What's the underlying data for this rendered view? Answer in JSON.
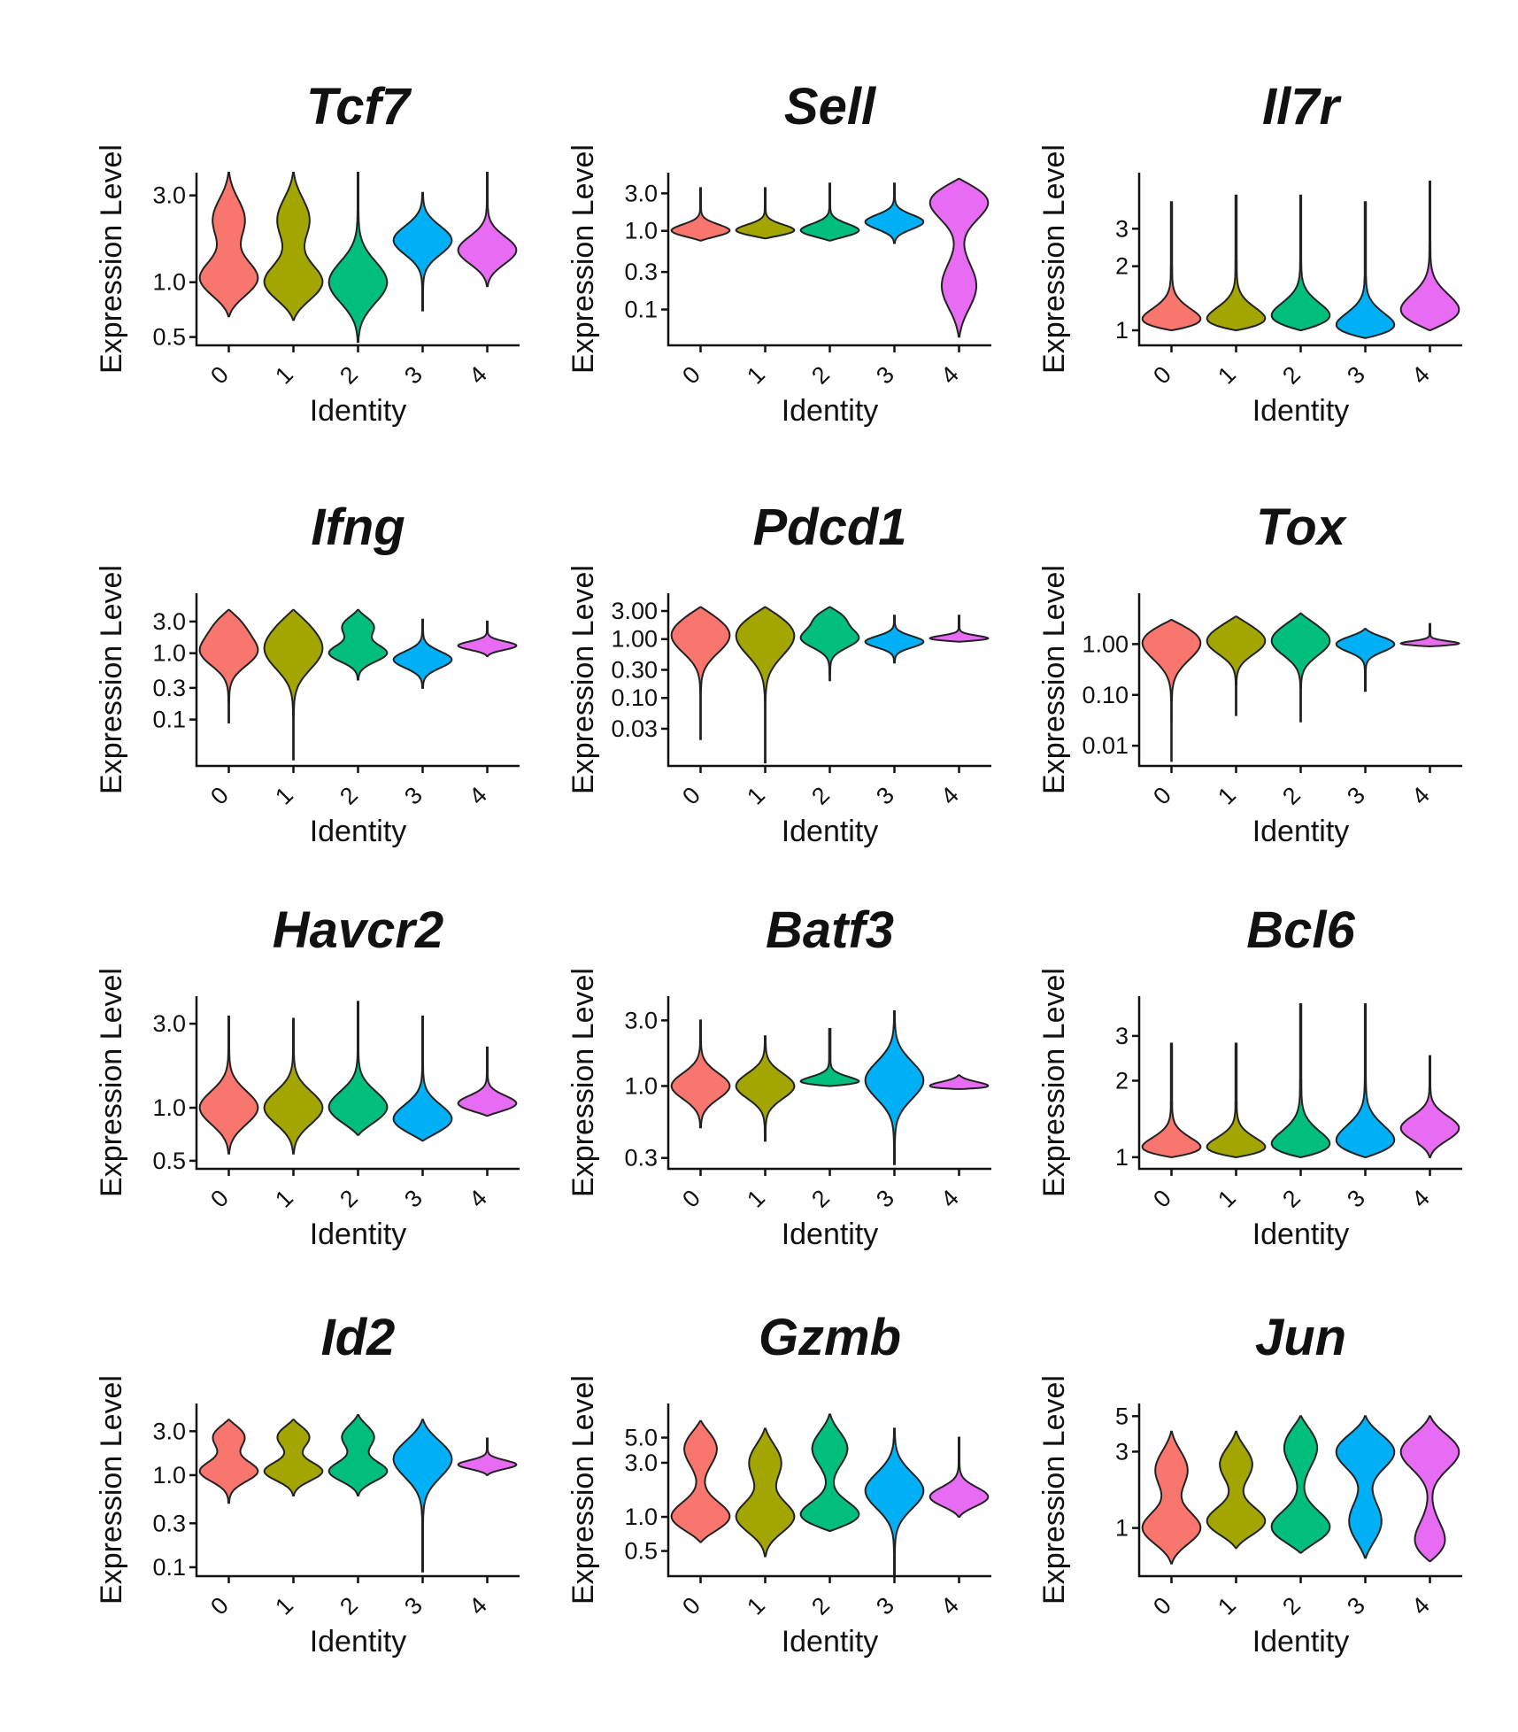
{
  "chart_data": [
    {
      "type": "violin",
      "title": "Tcf7",
      "xlabel": "Identity",
      "ylabel": "Expression Level",
      "categories": [
        "0",
        "1",
        "2",
        "3",
        "4"
      ],
      "yticks": [
        {
          "v": 0.5,
          "label": "0.5"
        },
        {
          "v": 1.0,
          "label": "1.0"
        },
        {
          "v": 3.0,
          "label": "3.0"
        }
      ],
      "ylim": [
        0.45,
        4.0
      ],
      "violins": [
        {
          "lo": 0.65,
          "hi": 4.0,
          "peak": 1.05,
          "top_bulge": 2.2
        },
        {
          "lo": 0.62,
          "hi": 4.0,
          "peak": 1.0,
          "top_bulge": 2.2
        },
        {
          "lo": 0.47,
          "hi": 4.0,
          "peak": 1.0,
          "top_bulge": null
        },
        {
          "lo": 0.7,
          "hi": 3.1,
          "peak": 1.7,
          "top_bulge": null
        },
        {
          "lo": 0.95,
          "hi": 4.0,
          "peak": 1.5,
          "top_bulge": null
        }
      ]
    },
    {
      "type": "violin",
      "title": "Sell",
      "xlabel": "Identity",
      "ylabel": "Expression Level",
      "categories": [
        "0",
        "1",
        "2",
        "3",
        "4"
      ],
      "yticks": [
        {
          "v": 0.1,
          "label": "0.1"
        },
        {
          "v": 0.3,
          "label": "0.3"
        },
        {
          "v": 1.0,
          "label": "1.0"
        },
        {
          "v": 3.0,
          "label": "3.0"
        }
      ],
      "ylim": [
        0.035,
        5.5
      ],
      "violins": [
        {
          "lo": 0.75,
          "hi": 3.5,
          "peak": 1.0,
          "top_bulge": null
        },
        {
          "lo": 0.8,
          "hi": 3.5,
          "peak": 1.0,
          "top_bulge": null
        },
        {
          "lo": 0.75,
          "hi": 4.0,
          "peak": 1.0,
          "top_bulge": null
        },
        {
          "lo": 0.7,
          "hi": 4.0,
          "peak": 1.3,
          "top_bulge": null
        },
        {
          "lo": 0.045,
          "hi": 4.6,
          "peak": 2.5,
          "top_bulge": 0.2
        }
      ]
    },
    {
      "type": "violin",
      "title": "Il7r",
      "xlabel": "Identity",
      "ylabel": "Expression Level",
      "categories": [
        "0",
        "1",
        "2",
        "3",
        "4"
      ],
      "yticks": [
        {
          "v": 1,
          "label": "1"
        },
        {
          "v": 2,
          "label": "2"
        },
        {
          "v": 3,
          "label": "3"
        }
      ],
      "ylim": [
        0.85,
        5.5
      ],
      "violins": [
        {
          "lo": 1.0,
          "hi": 4.0,
          "peak": 1.02,
          "top_bulge": null
        },
        {
          "lo": 1.0,
          "hi": 4.3,
          "peak": 1.02,
          "top_bulge": null
        },
        {
          "lo": 1.0,
          "hi": 4.3,
          "peak": 1.1,
          "top_bulge": null
        },
        {
          "lo": 0.92,
          "hi": 4.0,
          "peak": 0.97,
          "top_bulge": null
        },
        {
          "lo": 1.0,
          "hi": 5.0,
          "peak": 1.2,
          "top_bulge": null
        }
      ]
    },
    {
      "type": "violin",
      "title": "Ifng",
      "xlabel": "Identity",
      "ylabel": "Expression Level",
      "categories": [
        "0",
        "1",
        "2",
        "3",
        "4"
      ],
      "yticks": [
        {
          "v": 0.1,
          "label": "0.1"
        },
        {
          "v": 0.3,
          "label": "0.3"
        },
        {
          "v": 1.0,
          "label": "1.0"
        },
        {
          "v": 3.0,
          "label": "3.0"
        }
      ],
      "ylim": [
        0.02,
        8.0
      ],
      "violins": [
        {
          "lo": 0.09,
          "hi": 4.5,
          "peak": 1.0,
          "top_bulge": 2.5
        },
        {
          "lo": 0.025,
          "hi": 4.5,
          "peak": 1.0,
          "top_bulge": 2.5
        },
        {
          "lo": 0.4,
          "hi": 4.5,
          "peak": 1.0,
          "top_bulge": 2.5
        },
        {
          "lo": 0.3,
          "hi": 3.2,
          "peak": 0.8,
          "top_bulge": null
        },
        {
          "lo": 0.9,
          "hi": 3.0,
          "peak": 1.3,
          "top_bulge": null
        }
      ]
    },
    {
      "type": "violin",
      "title": "Pdcd1",
      "xlabel": "Identity",
      "ylabel": "Expression Level",
      "categories": [
        "0",
        "1",
        "2",
        "3",
        "4"
      ],
      "yticks": [
        {
          "v": 0.03,
          "label": "0.03"
        },
        {
          "v": 0.1,
          "label": "0.10"
        },
        {
          "v": 0.3,
          "label": "0.30"
        },
        {
          "v": 1.0,
          "label": "1.00"
        },
        {
          "v": 3.0,
          "label": "3.00"
        }
      ],
      "ylim": [
        0.007,
        6.0
      ],
      "violins": [
        {
          "lo": 0.02,
          "hi": 3.5,
          "peak": 1.0,
          "top_bulge": 2.2
        },
        {
          "lo": 0.008,
          "hi": 3.5,
          "peak": 1.0,
          "top_bulge": 2.2
        },
        {
          "lo": 0.2,
          "hi": 3.5,
          "peak": 1.0,
          "top_bulge": 2.2
        },
        {
          "lo": 0.4,
          "hi": 2.5,
          "peak": 0.9,
          "top_bulge": null
        },
        {
          "lo": 0.9,
          "hi": 2.5,
          "peak": 1.0,
          "top_bulge": null
        }
      ]
    },
    {
      "type": "violin",
      "title": "Tox",
      "xlabel": "Identity",
      "ylabel": "Expression Level",
      "categories": [
        "0",
        "1",
        "2",
        "3",
        "4"
      ],
      "yticks": [
        {
          "v": 0.01,
          "label": "0.01"
        },
        {
          "v": 0.1,
          "label": "0.10"
        },
        {
          "v": 1.0,
          "label": "1.00"
        }
      ],
      "ylim": [
        0.004,
        10.0
      ],
      "violins": [
        {
          "lo": 0.005,
          "hi": 3.0,
          "peak": 1.0,
          "top_bulge": 1.8
        },
        {
          "lo": 0.04,
          "hi": 3.5,
          "peak": 1.0,
          "top_bulge": 2.0
        },
        {
          "lo": 0.03,
          "hi": 4.0,
          "peak": 1.0,
          "top_bulge": 2.0
        },
        {
          "lo": 0.12,
          "hi": 2.0,
          "peak": 1.0,
          "top_bulge": null
        },
        {
          "lo": 0.9,
          "hi": 2.5,
          "peak": 1.0,
          "top_bulge": null
        }
      ]
    },
    {
      "type": "violin",
      "title": "Havcr2",
      "xlabel": "Identity",
      "ylabel": "Expression Level",
      "categories": [
        "0",
        "1",
        "2",
        "3",
        "4"
      ],
      "yticks": [
        {
          "v": 0.5,
          "label": "0.5"
        },
        {
          "v": 1.0,
          "label": "1.0"
        },
        {
          "v": 3.0,
          "label": "3.0"
        }
      ],
      "ylim": [
        0.45,
        4.3
      ],
      "violins": [
        {
          "lo": 0.55,
          "hi": 3.3,
          "peak": 1.0,
          "top_bulge": null
        },
        {
          "lo": 0.55,
          "hi": 3.2,
          "peak": 1.0,
          "top_bulge": null
        },
        {
          "lo": 0.7,
          "hi": 4.0,
          "peak": 1.0,
          "top_bulge": null
        },
        {
          "lo": 0.65,
          "hi": 3.3,
          "peak": 0.85,
          "top_bulge": null
        },
        {
          "lo": 0.9,
          "hi": 2.2,
          "peak": 1.05,
          "top_bulge": null
        }
      ]
    },
    {
      "type": "violin",
      "title": "Batf3",
      "xlabel": "Identity",
      "ylabel": "Expression Level",
      "categories": [
        "0",
        "1",
        "2",
        "3",
        "4"
      ],
      "yticks": [
        {
          "v": 0.3,
          "label": "0.3"
        },
        {
          "v": 1.0,
          "label": "1.0"
        },
        {
          "v": 3.0,
          "label": "3.0"
        }
      ],
      "ylim": [
        0.25,
        4.5
      ],
      "violins": [
        {
          "lo": 0.5,
          "hi": 3.0,
          "peak": 1.0,
          "top_bulge": null
        },
        {
          "lo": 0.4,
          "hi": 2.3,
          "peak": 1.0,
          "top_bulge": null
        },
        {
          "lo": 1.0,
          "hi": 2.6,
          "peak": 1.0,
          "top_bulge": null
        },
        {
          "lo": 0.27,
          "hi": 3.5,
          "peak": 1.1,
          "top_bulge": null
        },
        {
          "lo": 0.95,
          "hi": 1.2,
          "peak": 1.0,
          "top_bulge": null
        }
      ]
    },
    {
      "type": "violin",
      "title": "Bcl6",
      "xlabel": "Identity",
      "ylabel": "Expression Level",
      "categories": [
        "0",
        "1",
        "2",
        "3",
        "4"
      ],
      "yticks": [
        {
          "v": 1,
          "label": "1"
        },
        {
          "v": 2,
          "label": "2"
        },
        {
          "v": 3,
          "label": "3"
        }
      ],
      "ylim": [
        0.9,
        4.3
      ],
      "violins": [
        {
          "lo": 1.0,
          "hi": 2.8,
          "peak": 1.02,
          "top_bulge": null
        },
        {
          "lo": 1.0,
          "hi": 2.8,
          "peak": 1.02,
          "top_bulge": null
        },
        {
          "lo": 1.0,
          "hi": 4.0,
          "peak": 1.02,
          "top_bulge": null
        },
        {
          "lo": 1.0,
          "hi": 4.0,
          "peak": 1.1,
          "top_bulge": null
        },
        {
          "lo": 1.0,
          "hi": 2.5,
          "peak": 1.3,
          "top_bulge": null
        }
      ]
    },
    {
      "type": "violin",
      "title": "Id2",
      "xlabel": "Identity",
      "ylabel": "Expression Level",
      "categories": [
        "0",
        "1",
        "2",
        "3",
        "4"
      ],
      "yticks": [
        {
          "v": 0.1,
          "label": "0.1"
        },
        {
          "v": 0.3,
          "label": "0.3"
        },
        {
          "v": 1.0,
          "label": "1.0"
        },
        {
          "v": 3.0,
          "label": "3.0"
        }
      ],
      "ylim": [
        0.08,
        6.0
      ],
      "violins": [
        {
          "lo": 0.5,
          "hi": 4.0,
          "peak": 1.1,
          "top_bulge": 2.6
        },
        {
          "lo": 0.6,
          "hi": 4.0,
          "peak": 1.1,
          "top_bulge": 2.6
        },
        {
          "lo": 0.6,
          "hi": 4.5,
          "peak": 1.1,
          "top_bulge": 2.6
        },
        {
          "lo": 0.09,
          "hi": 4.0,
          "peak": 1.5,
          "top_bulge": null
        },
        {
          "lo": 1.0,
          "hi": 2.5,
          "peak": 1.3,
          "top_bulge": null
        }
      ]
    },
    {
      "type": "violin",
      "title": "Gzmb",
      "xlabel": "Identity",
      "ylabel": "Expression Level",
      "categories": [
        "0",
        "1",
        "2",
        "3",
        "4"
      ],
      "yticks": [
        {
          "v": 0.5,
          "label": "0.5"
        },
        {
          "v": 1.0,
          "label": "1.0"
        },
        {
          "v": 3.0,
          "label": "3.0"
        },
        {
          "v": 5.0,
          "label": "5.0"
        }
      ],
      "ylim": [
        0.3,
        10.0
      ],
      "violins": [
        {
          "lo": 0.6,
          "hi": 7.0,
          "peak": 1.0,
          "top_bulge": 4.0
        },
        {
          "lo": 0.45,
          "hi": 6.0,
          "peak": 1.0,
          "top_bulge": 3.0
        },
        {
          "lo": 0.75,
          "hi": 8.0,
          "peak": 1.0,
          "top_bulge": 4.0
        },
        {
          "lo": 0.3,
          "hi": 6.0,
          "peak": 1.7,
          "top_bulge": null
        },
        {
          "lo": 1.0,
          "hi": 5.0,
          "peak": 1.5,
          "top_bulge": null
        }
      ]
    },
    {
      "type": "violin",
      "title": "Jun",
      "xlabel": "Identity",
      "ylabel": "Expression Level",
      "categories": [
        "0",
        "1",
        "2",
        "3",
        "4"
      ],
      "yticks": [
        {
          "v": 1,
          "label": "1"
        },
        {
          "v": 3,
          "label": "3"
        },
        {
          "v": 5,
          "label": "5"
        }
      ],
      "ylim": [
        0.5,
        6.0
      ],
      "violins": [
        {
          "lo": 0.6,
          "hi": 4.0,
          "peak": 1.0,
          "top_bulge": 2.3
        },
        {
          "lo": 0.75,
          "hi": 4.0,
          "peak": 1.1,
          "top_bulge": 2.5
        },
        {
          "lo": 0.7,
          "hi": 5.0,
          "peak": 1.0,
          "top_bulge": 3.2
        },
        {
          "lo": 0.65,
          "hi": 5.0,
          "peak": 3.0,
          "top_bulge": 1.1
        },
        {
          "lo": 0.62,
          "hi": 5.0,
          "peak": 3.0,
          "top_bulge": 0.8
        }
      ]
    }
  ],
  "colors": [
    "#F8766D",
    "#A3A500",
    "#00BF7D",
    "#00B0F6",
    "#E76BF3"
  ]
}
